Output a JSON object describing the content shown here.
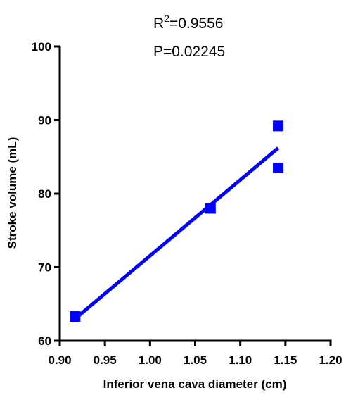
{
  "chart_data": {
    "type": "scatter",
    "xlabel": "Inferior vena cava diameter (cm)",
    "ylabel": "Stroke volume (mL)",
    "xlim": [
      0.9,
      1.2
    ],
    "ylim": [
      60,
      100
    ],
    "x_ticks": [
      0.9,
      0.95,
      1.0,
      1.05,
      1.1,
      1.15,
      1.2
    ],
    "x_tick_labels": [
      "0.90",
      "0.95",
      "1.00",
      "1.05",
      "1.10",
      "1.15",
      "1.20"
    ],
    "y_ticks": [
      60,
      70,
      80,
      90,
      100
    ],
    "y_tick_labels": [
      "60",
      "70",
      "80",
      "90",
      "100"
    ],
    "series": [
      {
        "marker": "square",
        "color": "#0000ff",
        "points": [
          {
            "x": 0.917,
            "y": 63.3
          },
          {
            "x": 1.067,
            "y": 78.0
          },
          {
            "x": 1.142,
            "y": 89.2
          },
          {
            "x": 1.142,
            "y": 83.5
          }
        ]
      }
    ],
    "fit_line": {
      "color": "#0000ff",
      "x_start": 0.917,
      "y_start": 63.0,
      "x_end": 1.142,
      "y_end": 86.2
    },
    "annotations": {
      "r2_prefix": "R",
      "r2_exp": "2",
      "r2_value": "=0.9556",
      "p_value": "P=0.02245"
    },
    "grid": false,
    "legend": "none"
  }
}
